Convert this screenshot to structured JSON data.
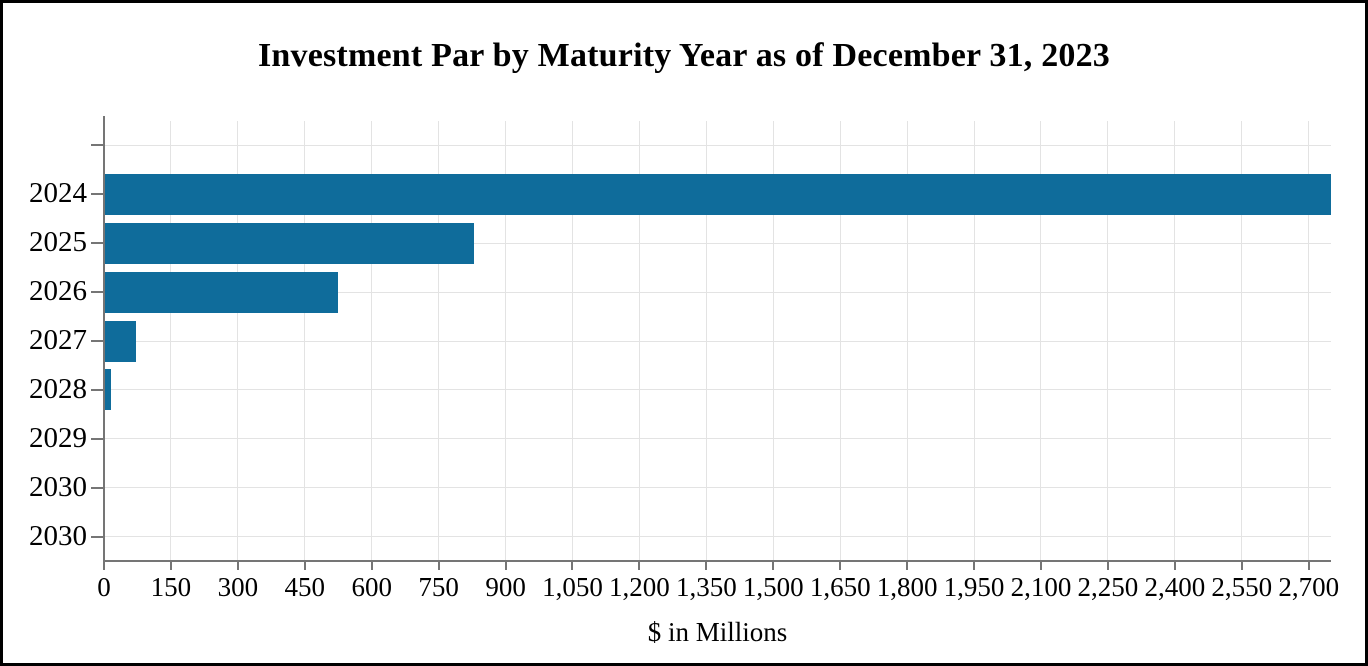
{
  "chart_data": {
    "type": "bar",
    "orientation": "horizontal",
    "title": "Investment Par by Maturity Year as of December 31, 2023",
    "categories": [
      "2024",
      "2025",
      "2026",
      "2027",
      "2028",
      "2029",
      "2030",
      "2030"
    ],
    "values": [
      2750,
      830,
      525,
      72,
      16,
      0,
      0,
      0
    ],
    "xlabel": "$ in Millions",
    "xlim": [
      0,
      2750
    ],
    "x_tick_values": [
      0,
      150,
      300,
      450,
      600,
      750,
      900,
      1050,
      1200,
      1350,
      1500,
      1650,
      1800,
      1950,
      2100,
      2250,
      2400,
      2550,
      2700
    ],
    "x_tick_labels": [
      "0",
      "150",
      "300",
      "450",
      "600",
      "750",
      "900",
      "1,050",
      "1,200",
      "1,350",
      "1,500",
      "1,650",
      "1,800",
      "1,950",
      "2,100",
      "2,250",
      "2,400",
      "2,550",
      "2,700"
    ],
    "grid": true,
    "legend": false,
    "leading_empty_row": true,
    "colors": {
      "bar": "#0F6C9B",
      "axis": "#757575",
      "gridline": "#E3E3E3",
      "text": "#000000",
      "border": "#000000",
      "background": "#FFFFFF"
    }
  }
}
